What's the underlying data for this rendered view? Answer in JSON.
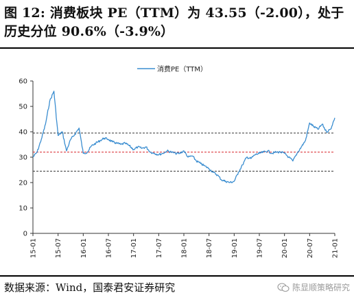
{
  "header": {
    "title": "图 12:  消费板块 PE（TTM）为 43.55（-2.00），处于历史分位 90.6%（-3.9%）"
  },
  "footer": {
    "source": "数据来源：Wind，国泰君安证券研究",
    "watermark": "陈显顺策略研究",
    "watermark_icon": "wechat-icon"
  },
  "colors": {
    "series": "#3a8dd0",
    "upper_line": "#333333",
    "mid_line": "#d9262c",
    "lower_line": "#333333"
  },
  "chart_data": {
    "type": "line",
    "title": "",
    "xlabel": "",
    "ylabel": "",
    "ylim": [
      0,
      60
    ],
    "yticks": [
      "0",
      "10",
      "20",
      "30",
      "40",
      "50",
      "60"
    ],
    "xticks": [
      "15-01",
      "15-07",
      "16-01",
      "16-07",
      "17-01",
      "17-07",
      "18-01",
      "18-07",
      "19-01",
      "19-07",
      "20-01",
      "20-07",
      "21-01"
    ],
    "legend": "top-center",
    "grid": false,
    "series": [
      {
        "name": "消费PE（TTM）",
        "x": [
          "15-01",
          "15-02",
          "15-03",
          "15-04",
          "15-05",
          "15-06",
          "15-07",
          "15-08",
          "15-09",
          "15-10",
          "15-11",
          "15-12",
          "16-01",
          "16-02",
          "16-03",
          "16-04",
          "16-05",
          "16-06",
          "16-07",
          "16-08",
          "16-09",
          "16-10",
          "16-11",
          "16-12",
          "17-01",
          "17-02",
          "17-03",
          "17-04",
          "17-05",
          "17-06",
          "17-07",
          "17-08",
          "17-09",
          "17-10",
          "17-11",
          "17-12",
          "18-01",
          "18-02",
          "18-03",
          "18-04",
          "18-05",
          "18-06",
          "18-07",
          "18-08",
          "18-09",
          "18-10",
          "18-11",
          "18-12",
          "19-01",
          "19-02",
          "19-03",
          "19-04",
          "19-05",
          "19-06",
          "19-07",
          "19-08",
          "19-09",
          "19-10",
          "19-11",
          "19-12",
          "20-01",
          "20-02",
          "20-03",
          "20-04",
          "20-05",
          "20-06",
          "20-07",
          "20-08",
          "20-09",
          "20-10",
          "20-11",
          "20-12",
          "21-01"
        ],
        "values": [
          30.0,
          32.0,
          37.0,
          43.0,
          52.0,
          56.0,
          38.5,
          40.0,
          32.5,
          37.0,
          39.0,
          41.5,
          31.5,
          32.0,
          34.5,
          35.5,
          36.5,
          37.5,
          37.0,
          36.0,
          35.5,
          35.0,
          35.5,
          34.5,
          33.0,
          34.0,
          33.5,
          34.0,
          32.0,
          31.5,
          31.0,
          31.5,
          32.5,
          32.0,
          31.5,
          31.5,
          32.5,
          30.0,
          30.5,
          28.5,
          27.5,
          26.5,
          25.5,
          24.0,
          23.0,
          21.0,
          20.5,
          20.0,
          20.5,
          24.0,
          27.0,
          30.0,
          29.5,
          31.0,
          31.5,
          32.0,
          32.5,
          31.5,
          32.0,
          32.0,
          31.5,
          30.0,
          28.5,
          31.5,
          34.0,
          36.5,
          43.5,
          42.0,
          41.0,
          43.0,
          40.0,
          41.0,
          45.5
        ]
      }
    ],
    "reference_lines": [
      {
        "value": 39.5
      },
      {
        "value": 32.0
      },
      {
        "value": 24.5
      }
    ]
  }
}
